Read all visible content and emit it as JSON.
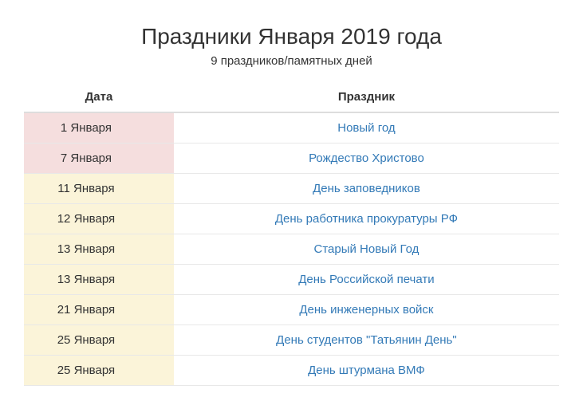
{
  "title": "Праздники Января 2019 года",
  "subtitle": "9 праздников/памятных дней",
  "table": {
    "columns": {
      "date": "Дата",
      "holiday": "Праздник"
    },
    "column_widths": {
      "date": "28%",
      "holiday": "72%"
    },
    "header_border_color": "#dddddd",
    "row_border_color": "#e8e8e8",
    "link_color": "#337ab7",
    "text_color": "#333333",
    "background_color": "#ffffff",
    "category_colors": {
      "pink": "#f5dede",
      "cream": "#fbf4d9"
    },
    "rows": [
      {
        "date": "1 Января",
        "name": "Новый год",
        "category": "pink"
      },
      {
        "date": "7 Января",
        "name": "Рождество Христово",
        "category": "pink"
      },
      {
        "date": "11 Января",
        "name": "День заповедников",
        "category": "cream"
      },
      {
        "date": "12 Января",
        "name": "День работника прокуратуры РФ",
        "category": "cream"
      },
      {
        "date": "13 Января",
        "name": "Старый Новый Год",
        "category": "cream"
      },
      {
        "date": "13 Января",
        "name": "День Российской печати",
        "category": "cream"
      },
      {
        "date": "21 Января",
        "name": "День инженерных войск",
        "category": "cream"
      },
      {
        "date": "25 Января",
        "name": "День студентов \"Татьянин День\"",
        "category": "cream"
      },
      {
        "date": "25 Января",
        "name": "День штурмана ВМФ",
        "category": "cream"
      }
    ]
  }
}
